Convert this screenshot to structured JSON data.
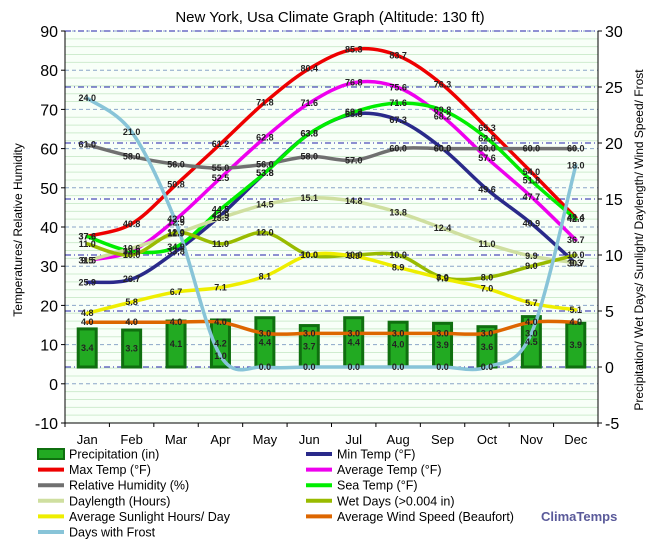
{
  "chart_data": {
    "type": "line",
    "title": "New York, Usa Climate Graph (Altitude: 130 ft)",
    "ylabel_left": "Temperatures/ Relative Humidity",
    "ylabel_right": "Precipitation/ Wet Days/ Sunlight/ Daylength/ Wind Speed/ Frost",
    "ylim_left": [
      -10,
      90
    ],
    "ylim_right": [
      -5,
      30
    ],
    "yticks_left": [
      "-10",
      "0",
      "10",
      "20",
      "30",
      "40",
      "50",
      "60",
      "70",
      "80",
      "90"
    ],
    "yticks_right": [
      "-5",
      "0",
      "5",
      "10",
      "15",
      "20",
      "25",
      "30"
    ],
    "categories": [
      "Jan",
      "Feb",
      "Mar",
      "Apr",
      "May",
      "Jun",
      "Jul",
      "Aug",
      "Sep",
      "Oct",
      "Nov",
      "Dec"
    ],
    "grid": true,
    "legend_position": "bottom",
    "bars": {
      "name": "Precipitation (in)",
      "axis": "right",
      "values": [
        3.4,
        3.3,
        4.1,
        4.2,
        4.4,
        3.7,
        4.4,
        4.0,
        3.9,
        3.6,
        4.5,
        3.9
      ]
    },
    "series": [
      {
        "name": "Min Temp (°F)",
        "axis": "left",
        "color": "#2a2a8a",
        "values": [
          25.9,
          26.7,
          33.8,
          42.9,
          53.8,
          63.8,
          68.8,
          67.3,
          60.0,
          49.6,
          40.9,
          30.7
        ]
      },
      {
        "name": "Max Temp (°F)",
        "axis": "left",
        "color": "#ee0000",
        "values": [
          37.6,
          40.8,
          50.8,
          61.2,
          71.8,
          80.4,
          85.3,
          83.7,
          76.3,
          65.3,
          54.0,
          42.4
        ]
      },
      {
        "name": "Average Temp (°F)",
        "axis": "left",
        "color": "#ee00ee",
        "values": [
          31.5,
          33.8,
          42.0,
          52.5,
          62.8,
          71.6,
          76.8,
          75.6,
          68.2,
          57.6,
          47.7,
          36.7
        ]
      },
      {
        "name": "Relative Humidity (%)",
        "axis": "left",
        "color": "#707070",
        "values": [
          61.0,
          58.0,
          56.0,
          55.0,
          56.0,
          58.0,
          57.0,
          60.0,
          60.0,
          60.0,
          60.0,
          60.0
        ]
      },
      {
        "name": "Sea Temp (°F)",
        "axis": "left",
        "color": "#00ee00",
        "values": [
          37.6,
          33.8,
          34.9,
          44.5,
          53.8,
          63.8,
          69.3,
          71.6,
          69.8,
          62.6,
          51.8,
          42.0
        ]
      },
      {
        "name": "Daylength (Hours)",
        "axis": "right",
        "color": "#cfdfa0",
        "values": [
          9.5,
          10.6,
          11.9,
          13.3,
          14.5,
          15.1,
          14.8,
          13.8,
          12.4,
          11.0,
          9.9,
          9.3
        ]
      },
      {
        "name": "Wet Days (>0.004 in)",
        "axis": "right",
        "color": "#99bb00",
        "values": [
          11.0,
          10.0,
          12.0,
          11.0,
          12.0,
          10.0,
          10.0,
          10.0,
          8.0,
          8.0,
          9.0,
          10.0
        ]
      },
      {
        "name": "Average Sunlight Hours/ Day",
        "axis": "right",
        "color": "#eeee00",
        "values": [
          4.8,
          5.8,
          6.7,
          7.1,
          8.1,
          10.0,
          9.9,
          8.9,
          7.9,
          7.0,
          5.7,
          5.1
        ]
      },
      {
        "name": "Average Wind Speed (Beaufort)",
        "axis": "right",
        "color": "#dd6600",
        "values": [
          4.0,
          4.0,
          4.0,
          4.0,
          3.0,
          3.0,
          3.0,
          3.0,
          3.0,
          3.0,
          4.0,
          4.0
        ]
      },
      {
        "name": "Days with Frost",
        "axis": "right",
        "color": "#88c4d8",
        "values": [
          24.0,
          21.0,
          12.9,
          1.0,
          0.0,
          0.0,
          0.0,
          0.0,
          0.0,
          0.0,
          3.0,
          18.0
        ]
      }
    ],
    "brand": "ClimaTemps"
  }
}
